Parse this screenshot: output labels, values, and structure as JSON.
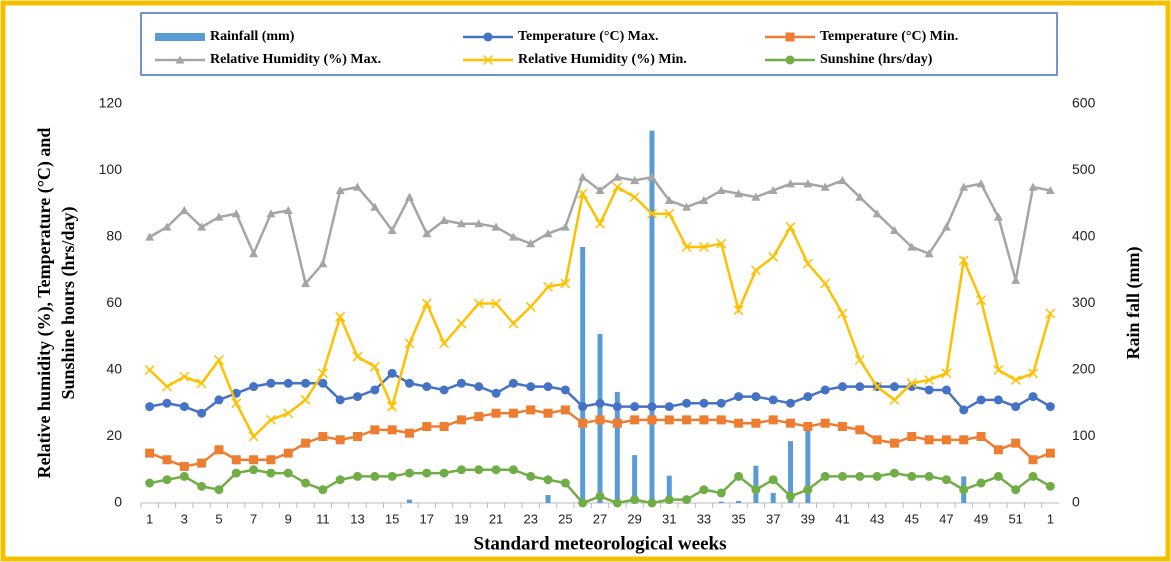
{
  "chart_data": {
    "type": "combo",
    "xlabel": "Standard meteorological weeks",
    "ylabel": [
      "Relative humidity (%), Temperature (°C) and",
      "Sunshine hours (hrs/day)"
    ],
    "y2label": "Rain fall (mm)",
    "categories": [
      "1",
      null,
      "3",
      null,
      "5",
      null,
      "7",
      null,
      "9",
      null,
      "11",
      null,
      "13",
      null,
      "15",
      null,
      "17",
      null,
      "19",
      null,
      "21",
      null,
      "23",
      null,
      "25",
      null,
      "27",
      null,
      "29",
      null,
      "31",
      null,
      "33",
      null,
      "35",
      null,
      "37",
      null,
      "39",
      null,
      "41",
      null,
      "43",
      null,
      "45",
      null,
      "47",
      null,
      "49",
      null,
      "51",
      null,
      "1"
    ],
    "ylim": [
      0,
      120
    ],
    "yticks": [
      0,
      20,
      40,
      60,
      80,
      100,
      120
    ],
    "y2lim": [
      0,
      600
    ],
    "y2ticks": [
      0,
      100,
      200,
      300,
      400,
      500,
      600
    ],
    "series": [
      {
        "name": "Rainfall (mm)",
        "type": "bar",
        "axis": "y2",
        "color": "#5b9bd5",
        "values": [
          0,
          0,
          0,
          0,
          0,
          0,
          0,
          0,
          0,
          0,
          0,
          0,
          0,
          0,
          0,
          5,
          0,
          0,
          0,
          0,
          0,
          0,
          0,
          12,
          0,
          385,
          254,
          167,
          72,
          560,
          41,
          0,
          0,
          2,
          3,
          56,
          15,
          93,
          122,
          0,
          0,
          0,
          0,
          0,
          0,
          0,
          0,
          40,
          0,
          0,
          0,
          0,
          0
        ]
      },
      {
        "name": "Temperature (°C) Max.",
        "type": "line",
        "marker": "circle",
        "color": "#4472c4",
        "values": [
          29,
          30,
          29,
          27,
          31,
          33,
          35,
          36,
          36,
          36,
          36,
          31,
          32,
          34,
          39,
          36,
          35,
          34,
          36,
          35,
          33,
          36,
          35,
          35,
          34,
          29,
          30,
          29,
          29,
          29,
          29,
          30,
          30,
          30,
          32,
          32,
          31,
          30,
          32,
          34,
          35,
          35,
          35,
          35,
          35,
          34,
          34,
          28,
          31,
          31,
          29,
          32,
          29
        ]
      },
      {
        "name": "Temperature (°C) Min.",
        "type": "line",
        "marker": "square",
        "color": "#ed7d31",
        "values": [
          15,
          13,
          11,
          12,
          16,
          13,
          13,
          13,
          15,
          18,
          20,
          19,
          20,
          22,
          22,
          21,
          23,
          23,
          25,
          26,
          27,
          27,
          28,
          27,
          28,
          24,
          25,
          24,
          25,
          25,
          25,
          25,
          25,
          25,
          24,
          24,
          25,
          24,
          23,
          24,
          23,
          22,
          19,
          18,
          20,
          19,
          19,
          19,
          20,
          16,
          18,
          13,
          15
        ]
      },
      {
        "name": "Relative Humidity (%) Max.",
        "type": "line",
        "marker": "triangle",
        "color": "#a5a5a5",
        "values": [
          80,
          83,
          88,
          83,
          86,
          87,
          75,
          87,
          88,
          66,
          72,
          94,
          95,
          89,
          82,
          92,
          81,
          85,
          84,
          84,
          83,
          80,
          78,
          81,
          83,
          98,
          94,
          98,
          97,
          98,
          91,
          89,
          91,
          94,
          93,
          92,
          94,
          96,
          96,
          95,
          97,
          92,
          87,
          82,
          77,
          75,
          83,
          95,
          96,
          86,
          67,
          95,
          94
        ]
      },
      {
        "name": "Relative Humidity (%) Min.",
        "type": "line",
        "marker": "x",
        "color": "#ffc000",
        "values": [
          40,
          35,
          38,
          36,
          43,
          30,
          20,
          25,
          27,
          31,
          39,
          56,
          44,
          41,
          29,
          48,
          60,
          48,
          54,
          60,
          60,
          54,
          59,
          65,
          66,
          93,
          84,
          95,
          92,
          87,
          87,
          77,
          77,
          78,
          58,
          70,
          74,
          83,
          72,
          66,
          57,
          43,
          35,
          31,
          36,
          37,
          39,
          73,
          61,
          40,
          37,
          39,
          57
        ]
      },
      {
        "name": "Sunshine (hrs/day)",
        "type": "line",
        "marker": "circle",
        "color": "#70ad47",
        "values": [
          6,
          7,
          8,
          5,
          4,
          9,
          10,
          9,
          9,
          6,
          4,
          7,
          8,
          8,
          8,
          9,
          9,
          9,
          10,
          10,
          10,
          10,
          8,
          7,
          6,
          0,
          2,
          0,
          1,
          0,
          1,
          1,
          4,
          3,
          8,
          4,
          7,
          2,
          4,
          8,
          8,
          8,
          8,
          9,
          8,
          8,
          7,
          4,
          6,
          8,
          4,
          8,
          5
        ]
      }
    ]
  }
}
